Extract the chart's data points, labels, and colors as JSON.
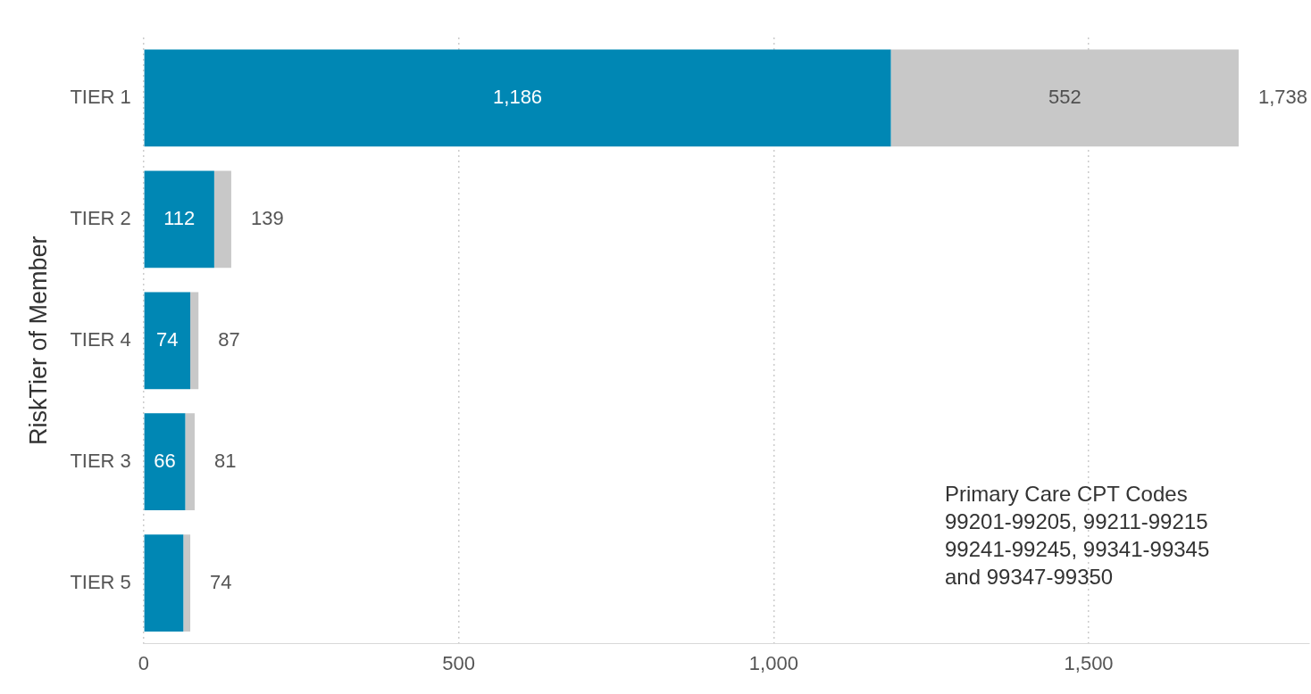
{
  "chart_data": {
    "type": "bar",
    "orientation": "horizontal",
    "stacked": true,
    "ylabel": "RiskTier of Member",
    "categories": [
      "TIER 1",
      "TIER 2",
      "TIER 4",
      "TIER 3",
      "TIER 5"
    ],
    "series": [
      {
        "color": "#0087b4",
        "values": [
          1186,
          112,
          74,
          66,
          63
        ],
        "value_labels": [
          "1,186",
          "112",
          "74",
          "66",
          null
        ]
      },
      {
        "color": "#c8c8c8",
        "values": [
          552,
          27,
          13,
          15,
          11
        ],
        "value_labels": [
          "552",
          null,
          null,
          null,
          null
        ]
      }
    ],
    "totals": [
      "1,738",
      "139",
      "87",
      "81",
      "74"
    ],
    "xlim": [
      0,
      1850
    ],
    "xticks": [
      0,
      500,
      {
        "value": 1000,
        "label": "1,000"
      },
      {
        "value": 1500,
        "label": "1,500"
      }
    ],
    "grid": "x",
    "annotations": [
      "Primary Care CPT Codes\n99201-99205, 99211-99215\n99241-99245, 99341-99345\nand 99347-99350"
    ]
  }
}
